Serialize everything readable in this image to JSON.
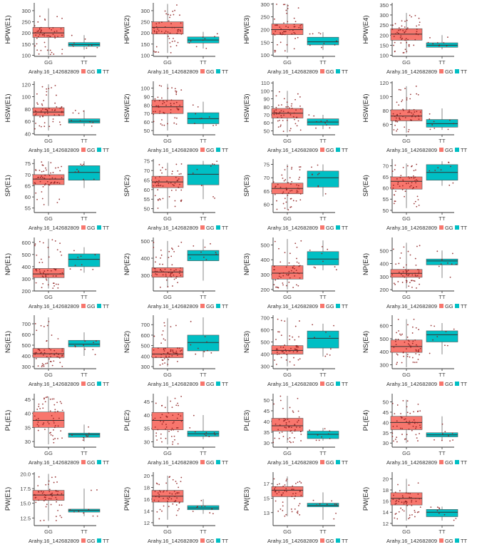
{
  "legend_title": "Arahy.16_142682809",
  "genotypes": [
    "GG",
    "TT"
  ],
  "colors": {
    "GG": "#F8766D",
    "TT": "#00BFC4",
    "point": "#8b1a1a",
    "axis": "#333333"
  },
  "chart_data": [
    {
      "type": "box",
      "title": "",
      "xlabel": "",
      "ylabel": "HPW(E1)",
      "categories": [
        "GG",
        "TT"
      ],
      "ylim": [
        95,
        335
      ],
      "yticks": [
        100,
        150,
        200,
        250,
        300
      ],
      "boxes": [
        {
          "q1": 180,
          "median": 200,
          "q3": 225,
          "wlo": 100,
          "whi": 310
        },
        {
          "q1": 140,
          "median": 148,
          "q3": 157,
          "wlo": 125,
          "whi": 190
        }
      ]
    },
    {
      "type": "box",
      "title": "",
      "xlabel": "",
      "ylabel": "HPW(E2)",
      "categories": [
        "GG",
        "TT"
      ],
      "ylim": [
        95,
        335
      ],
      "yticks": [
        100,
        150,
        200,
        250,
        300
      ],
      "boxes": [
        {
          "q1": 195,
          "median": 225,
          "q3": 250,
          "wlo": 110,
          "whi": 330
        },
        {
          "q1": 155,
          "median": 168,
          "q3": 182,
          "wlo": 130,
          "whi": 205
        }
      ]
    },
    {
      "type": "box",
      "title": "",
      "xlabel": "",
      "ylabel": "HPW(E3)",
      "categories": [
        "GG",
        "TT"
      ],
      "ylim": [
        95,
        305
      ],
      "yticks": [
        100,
        150,
        200,
        250,
        300
      ],
      "boxes": [
        {
          "q1": 180,
          "median": 200,
          "q3": 222,
          "wlo": 110,
          "whi": 300
        },
        {
          "q1": 140,
          "median": 152,
          "q3": 170,
          "wlo": 120,
          "whi": 190
        }
      ]
    },
    {
      "type": "box",
      "title": "",
      "xlabel": "",
      "ylabel": "HPW(E4)",
      "categories": [
        "GG",
        "TT"
      ],
      "ylim": [
        95,
        360
      ],
      "yticks": [
        100,
        150,
        200,
        250,
        300,
        350
      ],
      "boxes": [
        {
          "q1": 175,
          "median": 205,
          "q3": 232,
          "wlo": 110,
          "whi": 310
        },
        {
          "q1": 140,
          "median": 150,
          "q3": 162,
          "wlo": 130,
          "whi": 200
        }
      ]
    },
    {
      "type": "box",
      "title": "",
      "xlabel": "",
      "ylabel": "HSW(E1)",
      "categories": [
        "GG",
        "TT"
      ],
      "ylim": [
        38,
        125
      ],
      "yticks": [
        40,
        60,
        80,
        100,
        120
      ],
      "boxes": [
        {
          "q1": 69,
          "median": 75,
          "q3": 82,
          "wlo": 45,
          "whi": 120
        },
        {
          "q1": 57,
          "median": 60,
          "q3": 64,
          "wlo": 52,
          "whi": 78
        }
      ]
    },
    {
      "type": "box",
      "title": "",
      "xlabel": "",
      "ylabel": "HSW(E2)",
      "categories": [
        "GG",
        "TT"
      ],
      "ylim": [
        45,
        108
      ],
      "yticks": [
        50,
        60,
        70,
        80,
        90,
        100
      ],
      "boxes": [
        {
          "q1": 70,
          "median": 78,
          "q3": 86,
          "wlo": 50,
          "whi": 105
        },
        {
          "q1": 58,
          "median": 64,
          "q3": 71,
          "wlo": 52,
          "whi": 84
        }
      ]
    },
    {
      "type": "box",
      "title": "",
      "xlabel": "",
      "ylabel": "HSW(E3)",
      "categories": [
        "GG",
        "TT"
      ],
      "ylim": [
        45,
        112
      ],
      "yticks": [
        50,
        60,
        70,
        80,
        90,
        100,
        110
      ],
      "boxes": [
        {
          "q1": 66,
          "median": 72,
          "q3": 78,
          "wlo": 48,
          "whi": 100
        },
        {
          "q1": 57,
          "median": 61,
          "q3": 65,
          "wlo": 52,
          "whi": 70
        }
      ]
    },
    {
      "type": "box",
      "title": "",
      "xlabel": "",
      "ylabel": "HSW(E4)",
      "categories": [
        "GG",
        "TT"
      ],
      "ylim": [
        45,
        122
      ],
      "yticks": [
        60,
        80,
        100,
        120
      ],
      "boxes": [
        {
          "q1": 65,
          "median": 72,
          "q3": 81,
          "wlo": 48,
          "whi": 115
        },
        {
          "q1": 56,
          "median": 61,
          "q3": 67,
          "wlo": 52,
          "whi": 83
        }
      ]
    },
    {
      "type": "box",
      "title": "",
      "xlabel": "",
      "ylabel": "SP(E1)",
      "categories": [
        "GG",
        "TT"
      ],
      "ylim": [
        53,
        77
      ],
      "yticks": [
        55,
        60,
        65,
        70,
        75
      ],
      "boxes": [
        {
          "q1": 65.5,
          "median": 68,
          "q3": 70,
          "wlo": 56,
          "whi": 76
        },
        {
          "q1": 67.5,
          "median": 71,
          "q3": 74,
          "wlo": 64,
          "whi": 76
        }
      ]
    },
    {
      "type": "box",
      "title": "",
      "xlabel": "",
      "ylabel": "SP(E2)",
      "categories": [
        "GG",
        "TT"
      ],
      "ylim": [
        48,
        76
      ],
      "yticks": [
        50,
        55,
        60,
        65,
        70,
        75
      ],
      "boxes": [
        {
          "q1": 61,
          "median": 64,
          "q3": 67,
          "wlo": 50,
          "whi": 74
        },
        {
          "q1": 62.5,
          "median": 68,
          "q3": 73,
          "wlo": 55,
          "whi": 75
        }
      ]
    },
    {
      "type": "box",
      "title": "",
      "xlabel": "",
      "ylabel": "SP(E3)",
      "categories": [
        "GG",
        "TT"
      ],
      "ylim": [
        57,
        77
      ],
      "yticks": [
        60,
        65,
        70,
        75
      ],
      "boxes": [
        {
          "q1": 64,
          "median": 66,
          "q3": 68,
          "wlo": 58,
          "whi": 75
        },
        {
          "q1": 66.5,
          "median": 70,
          "q3": 72.5,
          "wlo": 63,
          "whi": 75
        }
      ]
    },
    {
      "type": "box",
      "title": "",
      "xlabel": "",
      "ylabel": "SP(E4)",
      "categories": [
        "GG",
        "TT"
      ],
      "ylim": [
        49,
        73
      ],
      "yticks": [
        50,
        55,
        60,
        65,
        70
      ],
      "boxes": [
        {
          "q1": 59.5,
          "median": 63,
          "q3": 65,
          "wlo": 51,
          "whi": 71
        },
        {
          "q1": 63.5,
          "median": 67,
          "q3": 70.5,
          "wlo": 61,
          "whi": 72
        }
      ]
    },
    {
      "type": "box",
      "title": "",
      "xlabel": "",
      "ylabel": "NP(E1)",
      "categories": [
        "GG",
        "TT"
      ],
      "ylim": [
        200,
        640
      ],
      "yticks": [
        200,
        300,
        400,
        500,
        600
      ],
      "boxes": [
        {
          "q1": 310,
          "median": 340,
          "q3": 385,
          "wlo": 220,
          "whi": 630
        },
        {
          "q1": 400,
          "median": 460,
          "q3": 505,
          "wlo": 350,
          "whi": 560
        }
      ]
    },
    {
      "type": "box",
      "title": "",
      "xlabel": "",
      "ylabel": "NP(E2)",
      "categories": [
        "GG",
        "TT"
      ],
      "ylim": [
        210,
        520
      ],
      "yticks": [
        300,
        400,
        500
      ],
      "boxes": [
        {
          "q1": 290,
          "median": 320,
          "q3": 345,
          "wlo": 230,
          "whi": 500
        },
        {
          "q1": 385,
          "median": 420,
          "q3": 445,
          "wlo": 270,
          "whi": 510
        }
      ]
    },
    {
      "type": "box",
      "title": "",
      "xlabel": "",
      "ylabel": "NP(E3)",
      "categories": [
        "GG",
        "TT"
      ],
      "ylim": [
        190,
        550
      ],
      "yticks": [
        200,
        300,
        400,
        500
      ],
      "boxes": [
        {
          "q1": 270,
          "median": 310,
          "q3": 360,
          "wlo": 200,
          "whi": 540
        },
        {
          "q1": 365,
          "median": 405,
          "q3": 455,
          "wlo": 330,
          "whi": 530
        }
      ]
    },
    {
      "type": "box",
      "title": "",
      "xlabel": "",
      "ylabel": "NP(E4)",
      "categories": [
        "GG",
        "TT"
      ],
      "ylim": [
        190,
        600
      ],
      "yticks": [
        200,
        300,
        400,
        500
      ],
      "boxes": [
        {
          "q1": 295,
          "median": 325,
          "q3": 355,
          "wlo": 210,
          "whi": 560
        },
        {
          "q1": 390,
          "median": 420,
          "q3": 435,
          "wlo": 290,
          "whi": 500
        }
      ]
    },
    {
      "type": "box",
      "title": "",
      "xlabel": "",
      "ylabel": "NS(E1)",
      "categories": [
        "GG",
        "TT"
      ],
      "ylim": [
        280,
        780
      ],
      "yticks": [
        300,
        400,
        500,
        600,
        700
      ],
      "boxes": [
        {
          "q1": 385,
          "median": 420,
          "q3": 470,
          "wlo": 290,
          "whi": 760
        },
        {
          "q1": 485,
          "median": 510,
          "q3": 545,
          "wlo": 400,
          "whi": 620
        }
      ]
    },
    {
      "type": "box",
      "title": "",
      "xlabel": "",
      "ylabel": "NS(E2)",
      "categories": [
        "GG",
        "TT"
      ],
      "ylim": [
        280,
        790
      ],
      "yticks": [
        300,
        400,
        500,
        600,
        700
      ],
      "boxes": [
        {
          "q1": 385,
          "median": 420,
          "q3": 480,
          "wlo": 300,
          "whi": 760
        },
        {
          "q1": 450,
          "median": 530,
          "q3": 600,
          "wlo": 390,
          "whi": 770
        }
      ]
    },
    {
      "type": "box",
      "title": "",
      "xlabel": "",
      "ylabel": "NS(E3)",
      "categories": [
        "GG",
        "TT"
      ],
      "ylim": [
        280,
        720
      ],
      "yticks": [
        300,
        400,
        500,
        600,
        700
      ],
      "boxes": [
        {
          "q1": 400,
          "median": 430,
          "q3": 470,
          "wlo": 300,
          "whi": 700
        },
        {
          "q1": 450,
          "median": 530,
          "q3": 590,
          "wlo": 380,
          "whi": 650
        }
      ]
    },
    {
      "type": "box",
      "title": "",
      "xlabel": "",
      "ylabel": "NS(E4)",
      "categories": [
        "GG",
        "TT"
      ],
      "ylim": [
        270,
        680
      ],
      "yticks": [
        300,
        400,
        500,
        600
      ],
      "boxes": [
        {
          "q1": 395,
          "median": 440,
          "q3": 490,
          "wlo": 280,
          "whi": 650
        },
        {
          "q1": 475,
          "median": 530,
          "q3": 560,
          "wlo": 380,
          "whi": 620
        }
      ]
    },
    {
      "type": "box",
      "title": "",
      "xlabel": "",
      "ylabel": "PL(E1)",
      "categories": [
        "GG",
        "TT"
      ],
      "ylim": [
        28,
        47
      ],
      "yticks": [
        30,
        35,
        40,
        45
      ],
      "boxes": [
        {
          "q1": 35,
          "median": 37.5,
          "q3": 40.5,
          "wlo": 29,
          "whi": 46
        },
        {
          "q1": 31.5,
          "median": 32.5,
          "q3": 33,
          "wlo": 30,
          "whi": 36
        }
      ]
    },
    {
      "type": "box",
      "title": "",
      "xlabel": "",
      "ylabel": "PL(E2)",
      "categories": [
        "GG",
        "TT"
      ],
      "ylim": [
        28,
        48
      ],
      "yticks": [
        30,
        35,
        40,
        45
      ],
      "boxes": [
        {
          "q1": 34.5,
          "median": 38,
          "q3": 41,
          "wlo": 29,
          "whi": 47
        },
        {
          "q1": 32,
          "median": 33,
          "q3": 34,
          "wlo": 31,
          "whi": 40
        }
      ]
    },
    {
      "type": "box",
      "title": "",
      "xlabel": "",
      "ylabel": "PL(E3)",
      "categories": [
        "GG",
        "TT"
      ],
      "ylim": [
        28,
        53
      ],
      "yticks": [
        30,
        35,
        40,
        45,
        50
      ],
      "boxes": [
        {
          "q1": 35.5,
          "median": 38,
          "q3": 41.5,
          "wlo": 30,
          "whi": 52
        },
        {
          "q1": 32,
          "median": 34,
          "q3": 35.5,
          "wlo": 31,
          "whi": 37
        }
      ]
    },
    {
      "type": "box",
      "title": "",
      "xlabel": "",
      "ylabel": "PL(E4)",
      "categories": [
        "GG",
        "TT"
      ],
      "ylim": [
        28,
        54
      ],
      "yticks": [
        30,
        35,
        40,
        45,
        50
      ],
      "boxes": [
        {
          "q1": 36.5,
          "median": 40,
          "q3": 43,
          "wlo": 30,
          "whi": 51
        },
        {
          "q1": 33,
          "median": 34,
          "q3": 35,
          "wlo": 31,
          "whi": 43
        }
      ]
    },
    {
      "type": "box",
      "title": "",
      "xlabel": "",
      "ylabel": "PW(E1)",
      "categories": [
        "GG",
        "TT"
      ],
      "ylim": [
        11.2,
        20.3
      ],
      "yticks": [
        12.5,
        15.0,
        17.5,
        20.0
      ],
      "boxes": [
        {
          "q1": 15.5,
          "median": 16.4,
          "q3": 17.2,
          "wlo": 12,
          "whi": 20
        },
        {
          "q1": 13.5,
          "median": 13.8,
          "q3": 14,
          "wlo": 12.8,
          "whi": 17.5
        }
      ]
    },
    {
      "type": "box",
      "title": "",
      "xlabel": "",
      "ylabel": "PW(E2)",
      "categories": [
        "GG",
        "TT"
      ],
      "ylim": [
        11.5,
        20.6
      ],
      "yticks": [
        12,
        14,
        16,
        18,
        20
      ],
      "boxes": [
        {
          "q1": 15.5,
          "median": 16.5,
          "q3": 17.5,
          "wlo": 12.5,
          "whi": 20
        },
        {
          "q1": 14.2,
          "median": 14.5,
          "q3": 14.9,
          "wlo": 13.5,
          "whi": 16
        }
      ]
    },
    {
      "type": "box",
      "title": "",
      "xlabel": "",
      "ylabel": "PW(E3)",
      "categories": [
        "GG",
        "TT"
      ],
      "ylim": [
        11.2,
        18.6
      ],
      "yticks": [
        13,
        15,
        17
      ],
      "boxes": [
        {
          "q1": 15.2,
          "median": 16.1,
          "q3": 16.6,
          "wlo": 12.5,
          "whi": 18
        },
        {
          "q1": 13.8,
          "median": 14,
          "q3": 14.3,
          "wlo": 12,
          "whi": 15.8
        }
      ]
    },
    {
      "type": "box",
      "title": "",
      "xlabel": "",
      "ylabel": "PW(E4)",
      "categories": [
        "GG",
        "TT"
      ],
      "ylim": [
        11.6,
        21.2
      ],
      "yticks": [
        12,
        14,
        16,
        18,
        20
      ],
      "boxes": [
        {
          "q1": 15.3,
          "median": 16.5,
          "q3": 17.5,
          "wlo": 12.5,
          "whi": 20
        },
        {
          "q1": 13.2,
          "median": 14,
          "q3": 14.5,
          "wlo": 12.5,
          "whi": 15
        }
      ]
    }
  ]
}
